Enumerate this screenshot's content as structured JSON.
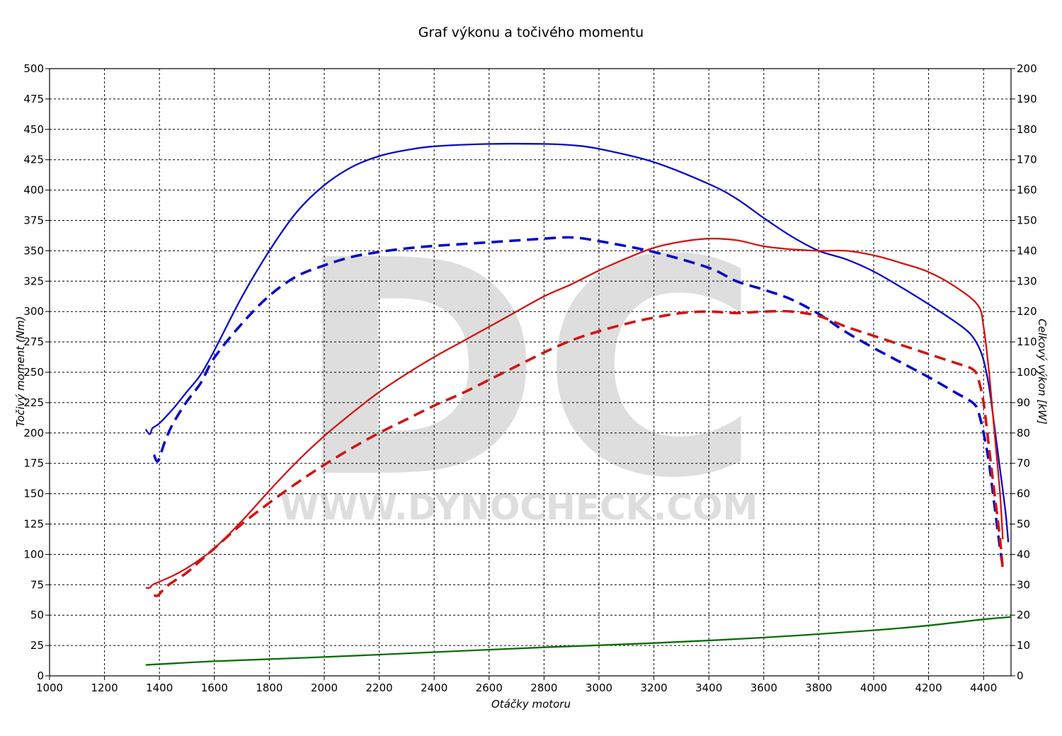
{
  "chart_data": {
    "type": "line",
    "title": "Graf výkonu a točivého momentu",
    "xlabel": "Otáčky motoru",
    "ylabel": "Točivý moment (Nm)",
    "y2label": "Celkový výkon [kW]",
    "xlim": [
      1000,
      4500
    ],
    "ylim": [
      0,
      500
    ],
    "y2lim": [
      0,
      200
    ],
    "x_ticks": [
      1000,
      1200,
      1400,
      1600,
      1800,
      2000,
      2200,
      2400,
      2600,
      2800,
      3000,
      3200,
      3400,
      3600,
      3800,
      4000,
      4200,
      4400
    ],
    "y_ticks": [
      0,
      25,
      50,
      75,
      100,
      125,
      150,
      175,
      200,
      225,
      250,
      275,
      300,
      325,
      350,
      375,
      400,
      425,
      450,
      475,
      500
    ],
    "y2_ticks": [
      0,
      10,
      20,
      30,
      40,
      50,
      60,
      70,
      80,
      90,
      100,
      110,
      120,
      130,
      140,
      150,
      160,
      170,
      180,
      190,
      200
    ],
    "grid": true,
    "watermark": {
      "logo": "DC",
      "url": "WWW.DYNOCHECK.COM"
    },
    "series": [
      {
        "axis": "left",
        "color": "#0a0ac8",
        "dash": false,
        "points": [
          [
            1350,
            203
          ],
          [
            1365,
            199
          ],
          [
            1375,
            204
          ],
          [
            1400,
            208
          ],
          [
            1450,
            220
          ],
          [
            1500,
            234
          ],
          [
            1550,
            248
          ],
          [
            1600,
            268
          ],
          [
            1700,
            312
          ],
          [
            1800,
            350
          ],
          [
            1900,
            382
          ],
          [
            2000,
            404
          ],
          [
            2100,
            419
          ],
          [
            2200,
            428
          ],
          [
            2300,
            433
          ],
          [
            2400,
            436
          ],
          [
            2600,
            438
          ],
          [
            2800,
            438
          ],
          [
            2900,
            437
          ],
          [
            3000,
            434
          ],
          [
            3200,
            423
          ],
          [
            3400,
            405
          ],
          [
            3500,
            393
          ],
          [
            3600,
            377
          ],
          [
            3700,
            362
          ],
          [
            3800,
            350
          ],
          [
            3900,
            343
          ],
          [
            4000,
            333
          ],
          [
            4100,
            320
          ],
          [
            4200,
            306
          ],
          [
            4300,
            291
          ],
          [
            4350,
            282
          ],
          [
            4380,
            272
          ],
          [
            4400,
            260
          ],
          [
            4420,
            238
          ],
          [
            4440,
            205
          ],
          [
            4460,
            170
          ],
          [
            4480,
            135
          ],
          [
            4490,
            110
          ]
        ]
      },
      {
        "axis": "left",
        "color": "#0a0ac8",
        "dash": true,
        "points": [
          [
            1380,
            182
          ],
          [
            1395,
            177
          ],
          [
            1420,
            193
          ],
          [
            1450,
            208
          ],
          [
            1500,
            226
          ],
          [
            1550,
            241
          ],
          [
            1600,
            262
          ],
          [
            1700,
            290
          ],
          [
            1800,
            313
          ],
          [
            1900,
            329
          ],
          [
            2000,
            338
          ],
          [
            2100,
            345
          ],
          [
            2200,
            349
          ],
          [
            2300,
            352
          ],
          [
            2400,
            354
          ],
          [
            2600,
            357
          ],
          [
            2800,
            360
          ],
          [
            2900,
            361
          ],
          [
            3000,
            358
          ],
          [
            3200,
            349
          ],
          [
            3400,
            336
          ],
          [
            3500,
            325
          ],
          [
            3600,
            318
          ],
          [
            3700,
            310
          ],
          [
            3800,
            298
          ],
          [
            3900,
            283
          ],
          [
            4000,
            270
          ],
          [
            4100,
            258
          ],
          [
            4200,
            246
          ],
          [
            4300,
            233
          ],
          [
            4360,
            225
          ],
          [
            4380,
            218
          ],
          [
            4400,
            200
          ],
          [
            4420,
            175
          ],
          [
            4440,
            140
          ],
          [
            4460,
            105
          ],
          [
            4470,
            90
          ]
        ]
      },
      {
        "axis": "right",
        "color": "#d21414",
        "dash": false,
        "points": [
          [
            1350,
            29
          ],
          [
            1365,
            29
          ],
          [
            1375,
            30
          ],
          [
            1400,
            31
          ],
          [
            1450,
            33
          ],
          [
            1500,
            35.5
          ],
          [
            1550,
            38.5
          ],
          [
            1600,
            42
          ],
          [
            1700,
            51
          ],
          [
            1800,
            61
          ],
          [
            1900,
            70.5
          ],
          [
            2000,
            79
          ],
          [
            2100,
            86.5
          ],
          [
            2200,
            93.5
          ],
          [
            2300,
            99.5
          ],
          [
            2400,
            105
          ],
          [
            2500,
            110
          ],
          [
            2600,
            115
          ],
          [
            2700,
            120
          ],
          [
            2800,
            125
          ],
          [
            2900,
            129
          ],
          [
            3000,
            133.5
          ],
          [
            3100,
            137.5
          ],
          [
            3200,
            141
          ],
          [
            3300,
            143
          ],
          [
            3400,
            144
          ],
          [
            3500,
            143.5
          ],
          [
            3600,
            141.5
          ],
          [
            3700,
            140.5
          ],
          [
            3800,
            140
          ],
          [
            3900,
            140
          ],
          [
            4000,
            138.5
          ],
          [
            4100,
            136
          ],
          [
            4200,
            133
          ],
          [
            4300,
            128
          ],
          [
            4380,
            122
          ],
          [
            4400,
            115
          ],
          [
            4420,
            100
          ],
          [
            4440,
            80
          ],
          [
            4460,
            60
          ],
          [
            4470,
            45
          ]
        ]
      },
      {
        "axis": "right",
        "color": "#d21414",
        "dash": true,
        "points": [
          [
            1380,
            26.5
          ],
          [
            1395,
            26.5
          ],
          [
            1420,
            29
          ],
          [
            1450,
            31
          ],
          [
            1500,
            34
          ],
          [
            1550,
            38
          ],
          [
            1600,
            42
          ],
          [
            1700,
            50
          ],
          [
            1800,
            57
          ],
          [
            1900,
            63.5
          ],
          [
            2000,
            69.5
          ],
          [
            2100,
            75
          ],
          [
            2200,
            80
          ],
          [
            2300,
            84.5
          ],
          [
            2400,
            89
          ],
          [
            2500,
            93
          ],
          [
            2600,
            97.5
          ],
          [
            2700,
            102
          ],
          [
            2800,
            106.5
          ],
          [
            2900,
            110.5
          ],
          [
            3000,
            113.5
          ],
          [
            3100,
            116
          ],
          [
            3200,
            118
          ],
          [
            3300,
            119.5
          ],
          [
            3400,
            120
          ],
          [
            3500,
            119.5
          ],
          [
            3600,
            120
          ],
          [
            3700,
            120
          ],
          [
            3800,
            118.5
          ],
          [
            3900,
            115
          ],
          [
            4000,
            112
          ],
          [
            4100,
            109
          ],
          [
            4200,
            106
          ],
          [
            4300,
            103
          ],
          [
            4360,
            101
          ],
          [
            4380,
            98
          ],
          [
            4400,
            90
          ],
          [
            4420,
            75
          ],
          [
            4440,
            60
          ],
          [
            4460,
            45
          ],
          [
            4470,
            35
          ]
        ]
      },
      {
        "axis": "left",
        "color": "#0a6e0a",
        "dash": false,
        "points": [
          [
            1350,
            9
          ],
          [
            1600,
            12
          ],
          [
            2000,
            15.5
          ],
          [
            2400,
            19.5
          ],
          [
            2800,
            23.5
          ],
          [
            3200,
            27
          ],
          [
            3600,
            31.5
          ],
          [
            4000,
            37.5
          ],
          [
            4200,
            41.5
          ],
          [
            4400,
            46.5
          ],
          [
            4500,
            48.5
          ]
        ]
      }
    ]
  }
}
